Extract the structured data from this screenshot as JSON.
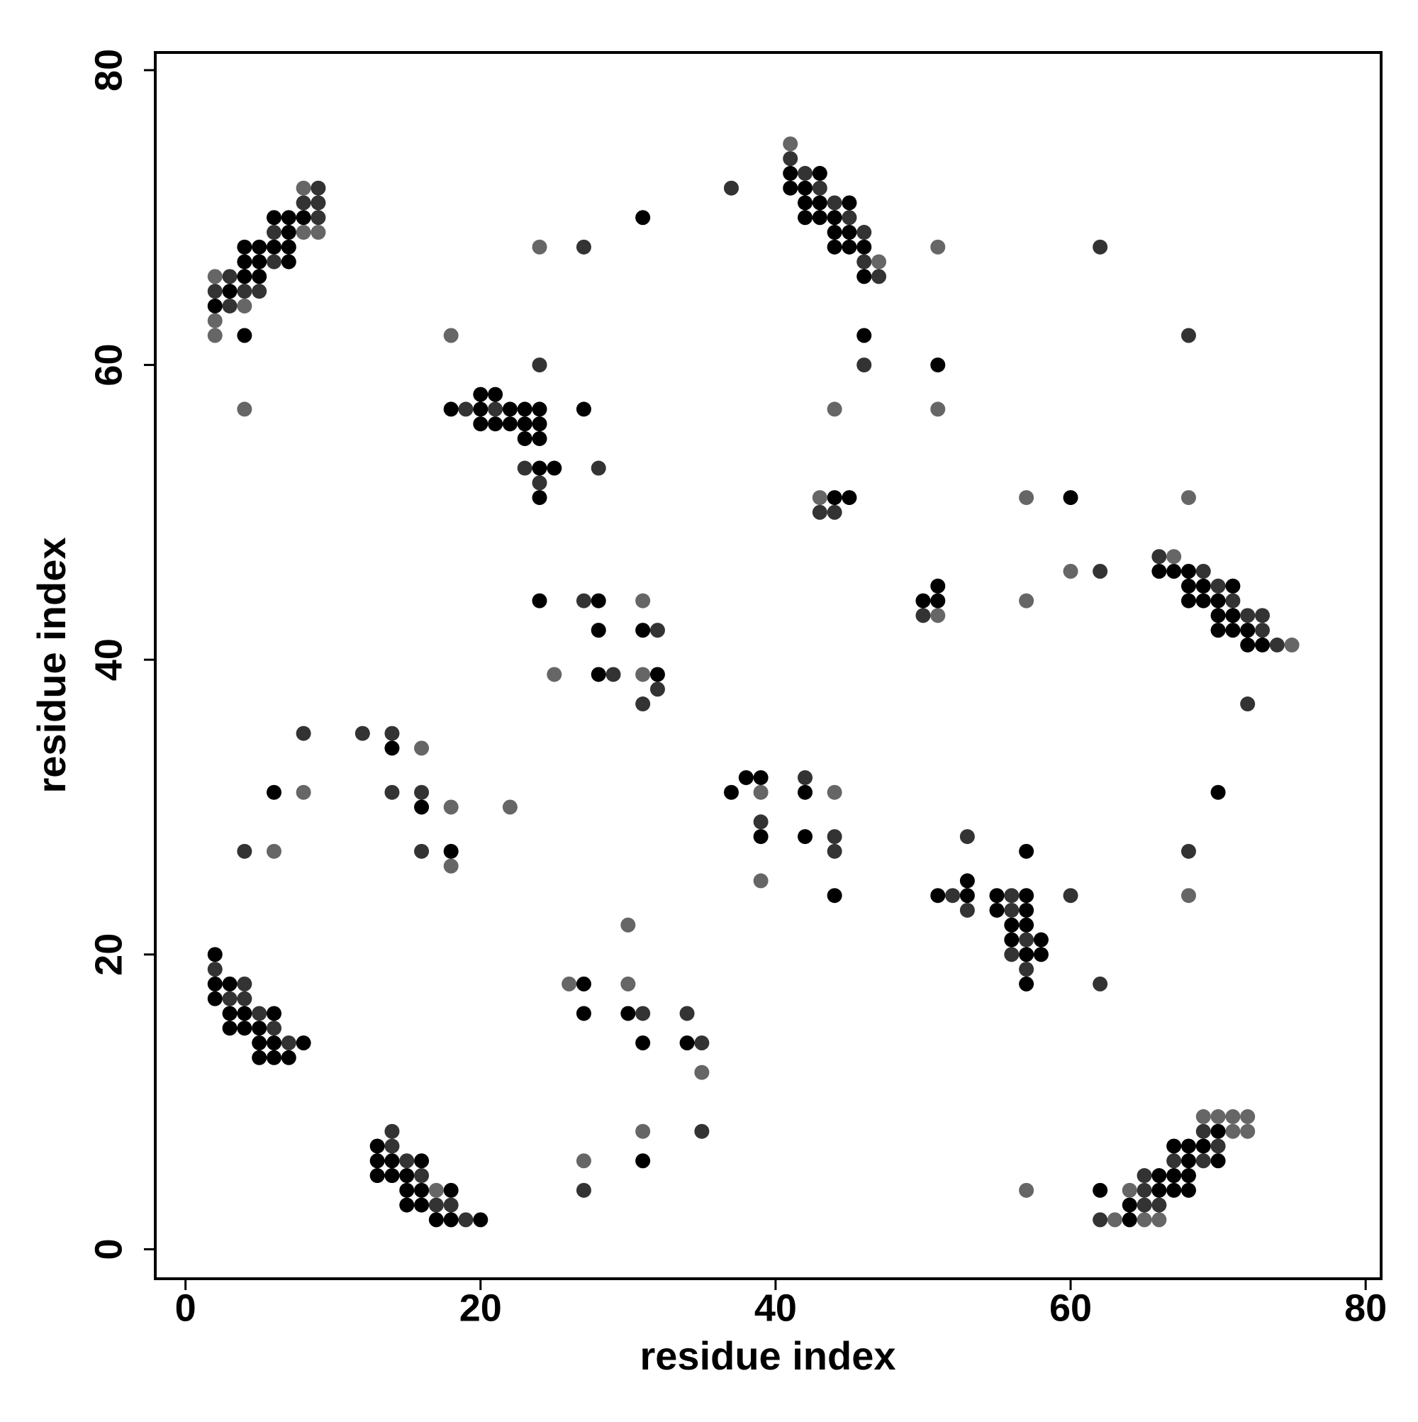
{
  "chart_data": {
    "type": "scatter",
    "xlabel": "residue index",
    "ylabel": "residue index",
    "xlim": [
      -2.05,
      81.05
    ],
    "ylim": [
      -2,
      81.2
    ],
    "xticks": [
      0,
      20,
      40,
      60,
      80
    ],
    "yticks": [
      0,
      20,
      40,
      60,
      80
    ],
    "series": [
      {
        "color": "#000000",
        "x": [
          2,
          3,
          4,
          4,
          4,
          4,
          5,
          5,
          5,
          6,
          6,
          7,
          7,
          7,
          7,
          8,
          18,
          20,
          21,
          20,
          22,
          23,
          24,
          20,
          21,
          22,
          23,
          24,
          23,
          24,
          27,
          31,
          24,
          25,
          24,
          24,
          28,
          28,
          31,
          28,
          32,
          14,
          6,
          16,
          18,
          2,
          2,
          3,
          2,
          3,
          4,
          6,
          3,
          4,
          5,
          5,
          6,
          8,
          5,
          6,
          7,
          13,
          13,
          14,
          16,
          13,
          14,
          15,
          15,
          16,
          18,
          15,
          16,
          17,
          18,
          20,
          27,
          27,
          30,
          31,
          34,
          31,
          37,
          38,
          39,
          42,
          39,
          42,
          44,
          41,
          43,
          41,
          42,
          42,
          43,
          45,
          42,
          43,
          44,
          44,
          45,
          44,
          45,
          46,
          46,
          46,
          51,
          44,
          45,
          50,
          51,
          51,
          60,
          66,
          67,
          68,
          68,
          69,
          71,
          68,
          69,
          70,
          70,
          71,
          70,
          71,
          72,
          72,
          73,
          70,
          51,
          53,
          53,
          55,
          57,
          55,
          57,
          56,
          57,
          56,
          58,
          57,
          58,
          57,
          57,
          70,
          67,
          68,
          69,
          68,
          70,
          66,
          67,
          68,
          66,
          67,
          68,
          64,
          62,
          64
        ],
        "values": [
          64,
          65,
          68,
          67,
          66,
          62,
          68,
          67,
          66,
          70,
          68,
          70,
          69,
          68,
          67,
          70,
          57,
          58,
          58,
          57,
          57,
          57,
          57,
          56,
          56,
          56,
          56,
          56,
          55,
          55,
          57,
          70,
          53,
          53,
          51,
          44,
          44,
          42,
          42,
          39,
          39,
          34,
          31,
          30,
          27,
          20,
          18,
          18,
          17,
          16,
          16,
          16,
          15,
          15,
          15,
          14,
          14,
          14,
          13,
          13,
          13,
          7,
          6,
          6,
          6,
          5,
          5,
          5,
          4,
          4,
          4,
          3,
          3,
          2,
          2,
          2,
          18,
          16,
          16,
          14,
          14,
          6,
          31,
          32,
          32,
          31,
          28,
          28,
          24,
          73,
          73,
          72,
          72,
          71,
          71,
          71,
          70,
          70,
          70,
          69,
          69,
          68,
          68,
          68,
          66,
          62,
          60,
          51,
          51,
          44,
          45,
          44,
          51,
          46,
          46,
          46,
          45,
          45,
          45,
          44,
          44,
          44,
          43,
          43,
          42,
          42,
          42,
          41,
          41,
          31,
          24,
          25,
          24,
          24,
          24,
          23,
          23,
          22,
          22,
          21,
          21,
          20,
          20,
          18,
          27,
          8,
          7,
          7,
          7,
          6,
          6,
          5,
          5,
          5,
          4,
          4,
          4,
          3,
          4,
          2
        ]
      },
      {
        "color": "#333333",
        "x": [
          2,
          3,
          3,
          4,
          5,
          6,
          6,
          8,
          9,
          9,
          9,
          19,
          21,
          24,
          27,
          23,
          24,
          28,
          27,
          32,
          29,
          32,
          31,
          8,
          12,
          14,
          14,
          16,
          4,
          16,
          2,
          4,
          3,
          4,
          5,
          6,
          7,
          14,
          14,
          15,
          16,
          17,
          18,
          19,
          31,
          34,
          35,
          35,
          27,
          42,
          39,
          44,
          44,
          37,
          41,
          42,
          43,
          44,
          45,
          46,
          46,
          47,
          46,
          43,
          44,
          50,
          62,
          62,
          68,
          66,
          69,
          70,
          71,
          72,
          73,
          73,
          74,
          72,
          68,
          52,
          53,
          53,
          56,
          56,
          57,
          56,
          57,
          60,
          62,
          69,
          70,
          67,
          69,
          65,
          65,
          65,
          66,
          62
        ],
        "values": [
          65,
          66,
          64,
          65,
          65,
          69,
          67,
          71,
          72,
          71,
          70,
          57,
          57,
          60,
          68,
          53,
          52,
          53,
          44,
          42,
          39,
          38,
          37,
          35,
          35,
          35,
          31,
          31,
          27,
          27,
          19,
          18,
          17,
          17,
          16,
          15,
          14,
          8,
          7,
          6,
          5,
          3,
          3,
          2,
          16,
          16,
          14,
          8,
          4,
          32,
          29,
          28,
          27,
          72,
          74,
          73,
          72,
          71,
          70,
          69,
          67,
          66,
          60,
          50,
          50,
          43,
          46,
          68,
          62,
          47,
          46,
          45,
          44,
          43,
          43,
          42,
          41,
          37,
          27,
          24,
          23,
          28,
          24,
          23,
          21,
          20,
          19,
          24,
          18,
          8,
          7,
          6,
          6,
          5,
          4,
          3,
          3,
          2
        ]
      },
      {
        "color": "#666666",
        "x": [
          2,
          2,
          2,
          4,
          4,
          8,
          8,
          9,
          18,
          24,
          31,
          25,
          31,
          16,
          8,
          18,
          22,
          6,
          18,
          17,
          26,
          30,
          30,
          35,
          31,
          27,
          39,
          44,
          39,
          41,
          47,
          44,
          51,
          51,
          43,
          51,
          57,
          60,
          57,
          68,
          67,
          75,
          68,
          69,
          70,
          71,
          72,
          71,
          72,
          64,
          63,
          65,
          66,
          57
        ],
        "values": [
          66,
          63,
          62,
          64,
          57,
          72,
          69,
          69,
          62,
          68,
          44,
          39,
          39,
          34,
          31,
          30,
          30,
          27,
          26,
          4,
          18,
          22,
          18,
          12,
          8,
          6,
          31,
          31,
          25,
          75,
          67,
          57,
          68,
          57,
          51,
          43,
          51,
          46,
          44,
          51,
          47,
          41,
          24,
          9,
          9,
          9,
          9,
          8,
          8,
          4,
          2,
          2,
          2,
          4
        ]
      }
    ]
  }
}
